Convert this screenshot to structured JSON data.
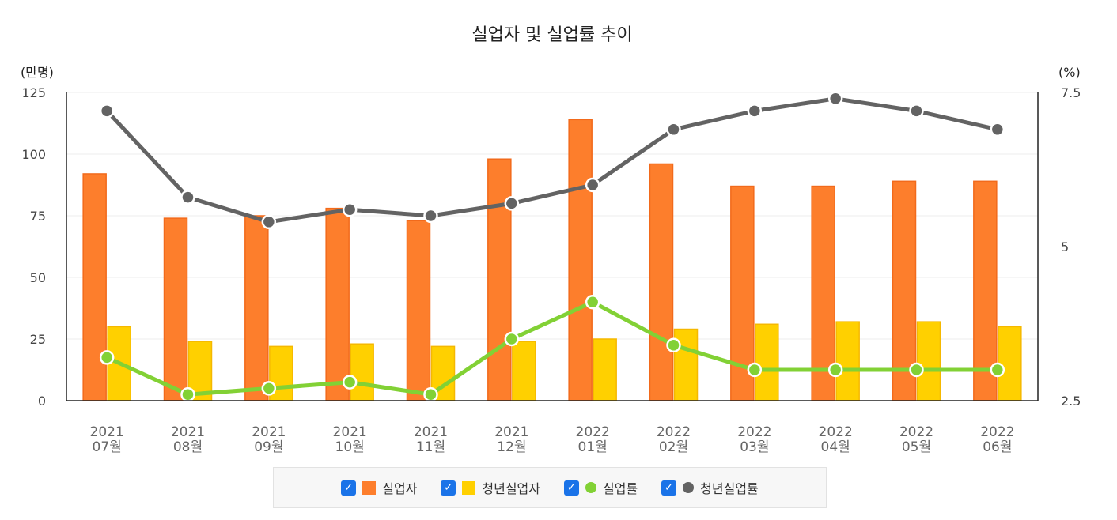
{
  "chart_data": {
    "type": "bar+line",
    "title": "실업자 및 실업률 추이",
    "left_axis": {
      "unit_label": "(만명)",
      "min": 0,
      "max": 125,
      "ticks": [
        "0",
        "25",
        "50",
        "75",
        "100",
        "125"
      ]
    },
    "right_axis": {
      "unit_label": "(%)",
      "min": 2.5,
      "max": 7.5,
      "ticks": [
        "2.5",
        "5",
        "7.5"
      ]
    },
    "categories": [
      {
        "year": "2021",
        "month": "07월"
      },
      {
        "year": "2021",
        "month": "08월"
      },
      {
        "year": "2021",
        "month": "09월"
      },
      {
        "year": "2021",
        "month": "10월"
      },
      {
        "year": "2021",
        "month": "11월"
      },
      {
        "year": "2021",
        "month": "12월"
      },
      {
        "year": "2022",
        "month": "01월"
      },
      {
        "year": "2022",
        "month": "02월"
      },
      {
        "year": "2022",
        "month": "03월"
      },
      {
        "year": "2022",
        "month": "04월"
      },
      {
        "year": "2022",
        "month": "05월"
      },
      {
        "year": "2022",
        "month": "06월"
      }
    ],
    "series": [
      {
        "name": "실업자",
        "kind": "bar",
        "axis": "left",
        "color": "#fd7e2c",
        "border": "#f26a1b",
        "values": [
          92,
          74,
          75,
          78,
          73,
          98,
          114,
          96,
          87,
          87,
          89,
          89
        ]
      },
      {
        "name": "청년실업자",
        "kind": "bar",
        "axis": "left",
        "color": "#ffd000",
        "border": "#f5b800",
        "values": [
          30,
          24,
          22,
          23,
          22,
          24,
          25,
          29,
          31,
          32,
          32,
          30
        ]
      },
      {
        "name": "실업률",
        "kind": "line",
        "axis": "right",
        "color": "#82d135",
        "values": [
          3.2,
          2.6,
          2.7,
          2.8,
          2.6,
          3.5,
          4.1,
          3.4,
          3.0,
          3.0,
          3.0,
          3.0
        ]
      },
      {
        "name": "청년실업률",
        "kind": "line",
        "axis": "right",
        "color": "#636363",
        "values": [
          7.2,
          5.8,
          5.4,
          5.6,
          5.5,
          5.7,
          6.0,
          6.9,
          7.2,
          7.4,
          7.2,
          6.9
        ]
      }
    ]
  },
  "legend": [
    {
      "label": "실업자",
      "swatch": "rect",
      "color": "#fd7e2c",
      "checked": "✓"
    },
    {
      "label": "청년실업자",
      "swatch": "rect",
      "color": "#ffd000",
      "checked": "✓"
    },
    {
      "label": "실업률",
      "swatch": "dot",
      "color": "#82d135",
      "checked": "✓"
    },
    {
      "label": "청년실업률",
      "swatch": "dot",
      "color": "#636363",
      "checked": "✓"
    }
  ]
}
